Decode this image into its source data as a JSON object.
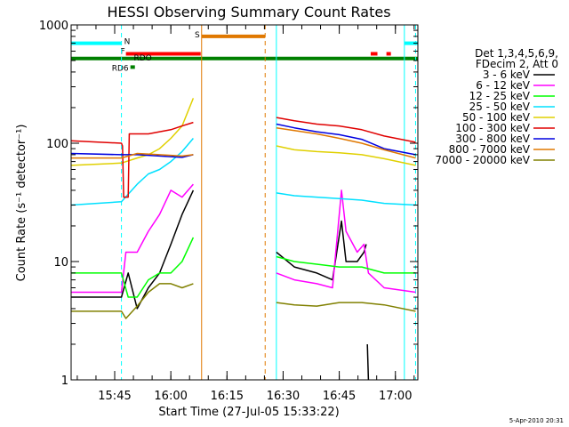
{
  "chart_data": {
    "type": "line",
    "title": "HESSI Observing Summary Count Rates",
    "xlabel": "Start Time (27-Jul-05 15:33:22)",
    "ylabel": "Count Rate (s⁻¹ detector⁻¹)",
    "yscale": "log",
    "ylim": [
      1,
      1000
    ],
    "xlim": [
      15.556,
      17.1
    ],
    "y_ticks": [
      {
        "value": 1,
        "label": "1"
      },
      {
        "value": 10,
        "label": "10"
      },
      {
        "value": 100,
        "label": "100"
      },
      {
        "value": 1000,
        "label": "1000"
      }
    ],
    "x_ticks": [
      {
        "value": 15.75,
        "label": "15:45"
      },
      {
        "value": 16.0,
        "label": "16:00"
      },
      {
        "value": 16.25,
        "label": "16:15"
      },
      {
        "value": 16.5,
        "label": "16:30"
      },
      {
        "value": 16.75,
        "label": "16:45"
      },
      {
        "value": 17.0,
        "label": "17:00"
      }
    ],
    "legend": {
      "position": "right",
      "header_lines": [
        "Det 1,3,4,5,6,9,",
        "FDecim 2, Att 0"
      ],
      "entries": [
        {
          "label": "3 - 6 keV",
          "color": "#000000"
        },
        {
          "label": "6 - 12 keV",
          "color": "#ff00ff"
        },
        {
          "label": "12 - 25 keV",
          "color": "#00ff00"
        },
        {
          "label": "25 - 50 keV",
          "color": "#00e0ff"
        },
        {
          "label": "50 - 100 keV",
          "color": "#e0d000"
        },
        {
          "label": "100 - 300 keV",
          "color": "#e00000"
        },
        {
          "label": "300 - 800 keV",
          "color": "#0000e0"
        },
        {
          "label": "800 - 7000 keV",
          "color": "#e07800"
        },
        {
          "label": "7000 - 20000 keV",
          "color": "#808000"
        }
      ]
    },
    "state_bars": [
      {
        "label": "N",
        "color": "#00ffff",
        "y": 700,
        "segments": [
          [
            15.556,
            15.78
          ],
          [
            17.04,
            17.1
          ]
        ]
      },
      {
        "label": "F",
        "color": "#ff0000",
        "y": 570,
        "segments": [
          [
            15.8,
            16.133
          ],
          [
            16.89,
            16.92
          ],
          [
            16.96,
            16.98
          ]
        ]
      },
      {
        "label": "S",
        "color": "#e07800",
        "y": 800,
        "segments": [
          [
            16.137,
            16.42
          ]
        ]
      },
      {
        "label": "RD6",
        "color": "#008000",
        "y": 440,
        "segments": [
          [
            15.82,
            15.84
          ]
        ]
      },
      {
        "label": "RDO",
        "color": "#008000",
        "y": 520,
        "segments": [
          [
            15.556,
            17.1
          ]
        ]
      }
    ],
    "boundaries": [
      {
        "x": 15.556,
        "color": "#00ffff",
        "style": "solid"
      },
      {
        "x": 15.78,
        "color": "#00ffff",
        "style": "dashed"
      },
      {
        "x": 16.137,
        "color": "#e07800",
        "style": "solid"
      },
      {
        "x": 16.42,
        "color": "#e07800",
        "style": "dashed"
      },
      {
        "x": 16.47,
        "color": "#00ffff",
        "style": "solid"
      },
      {
        "x": 17.04,
        "color": "#00ffff",
        "style": "solid"
      },
      {
        "x": 17.09,
        "color": "#00ffff",
        "style": "dashed"
      }
    ],
    "series": [
      {
        "name": "3 - 6 keV",
        "color": "#000000",
        "segments": [
          [
            [
              15.556,
              5
            ],
            [
              15.78,
              5
            ],
            [
              15.81,
              8
            ],
            [
              15.85,
              4
            ],
            [
              15.9,
              6
            ],
            [
              15.95,
              8
            ],
            [
              16.0,
              14
            ],
            [
              16.05,
              25
            ],
            [
              16.1,
              40
            ]
          ],
          [
            [
              16.47,
              12
            ],
            [
              16.55,
              9
            ],
            [
              16.65,
              8
            ],
            [
              16.72,
              7
            ],
            [
              16.76,
              22
            ],
            [
              16.78,
              10
            ],
            [
              16.83,
              10
            ],
            [
              16.86,
              12
            ],
            [
              16.87,
              14
            ]
          ],
          [
            [
              16.875,
              2
            ],
            [
              16.88,
              1
            ]
          ]
        ]
      },
      {
        "name": "6 - 12 keV",
        "color": "#ff00ff",
        "segments": [
          [
            [
              15.556,
              5.5
            ],
            [
              15.78,
              5.5
            ],
            [
              15.8,
              12
            ],
            [
              15.85,
              12
            ],
            [
              15.9,
              18
            ],
            [
              15.95,
              25
            ],
            [
              16.0,
              40
            ],
            [
              16.05,
              35
            ],
            [
              16.1,
              45
            ]
          ],
          [
            [
              16.47,
              8
            ],
            [
              16.55,
              7
            ],
            [
              16.65,
              6.5
            ],
            [
              16.72,
              6
            ],
            [
              16.76,
              40
            ],
            [
              16.78,
              18
            ],
            [
              16.83,
              12
            ],
            [
              16.86,
              14
            ],
            [
              16.88,
              8
            ],
            [
              16.95,
              6
            ],
            [
              17.09,
              5.5
            ]
          ]
        ]
      },
      {
        "name": "12 - 25 keV",
        "color": "#00ff00",
        "segments": [
          [
            [
              15.556,
              8
            ],
            [
              15.78,
              8
            ],
            [
              15.81,
              5
            ],
            [
              15.85,
              5
            ],
            [
              15.9,
              7
            ],
            [
              15.95,
              8
            ],
            [
              16.0,
              8
            ],
            [
              16.05,
              10
            ],
            [
              16.1,
              16
            ]
          ],
          [
            [
              16.47,
              11
            ],
            [
              16.55,
              10
            ],
            [
              16.65,
              9.5
            ],
            [
              16.75,
              9
            ],
            [
              16.85,
              9
            ],
            [
              16.95,
              8
            ],
            [
              17.09,
              8
            ]
          ]
        ]
      },
      {
        "name": "25 - 50 keV",
        "color": "#00e0ff",
        "segments": [
          [
            [
              15.556,
              30
            ],
            [
              15.78,
              32
            ],
            [
              15.85,
              45
            ],
            [
              15.9,
              55
            ],
            [
              15.95,
              60
            ],
            [
              16.0,
              70
            ],
            [
              16.05,
              85
            ],
            [
              16.1,
              110
            ]
          ],
          [
            [
              16.47,
              38
            ],
            [
              16.55,
              36
            ],
            [
              16.65,
              35
            ],
            [
              16.75,
              34
            ],
            [
              16.85,
              33
            ],
            [
              16.95,
              31
            ],
            [
              17.09,
              30
            ]
          ]
        ]
      },
      {
        "name": "50 - 100 keV",
        "color": "#e0d000",
        "segments": [
          [
            [
              15.556,
              65
            ],
            [
              15.78,
              68
            ],
            [
              15.85,
              75
            ],
            [
              15.9,
              80
            ],
            [
              15.95,
              90
            ],
            [
              16.0,
              110
            ],
            [
              16.05,
              140
            ],
            [
              16.1,
              240
            ]
          ],
          [
            [
              16.47,
              95
            ],
            [
              16.55,
              88
            ],
            [
              16.65,
              85
            ],
            [
              16.75,
              83
            ],
            [
              16.85,
              80
            ],
            [
              16.95,
              74
            ],
            [
              17.09,
              65
            ]
          ]
        ]
      },
      {
        "name": "100 - 300 keV",
        "color": "#e00000",
        "segments": [
          [
            [
              15.556,
              105
            ],
            [
              15.78,
              100
            ],
            [
              15.785,
              95
            ],
            [
              15.79,
              35
            ],
            [
              15.81,
              35
            ],
            [
              15.815,
              120
            ],
            [
              15.9,
              120
            ],
            [
              15.95,
              125
            ],
            [
              16.0,
              130
            ],
            [
              16.05,
              140
            ],
            [
              16.1,
              150
            ]
          ],
          [
            [
              16.47,
              165
            ],
            [
              16.55,
              155
            ],
            [
              16.65,
              145
            ],
            [
              16.75,
              140
            ],
            [
              16.85,
              130
            ],
            [
              16.95,
              115
            ],
            [
              17.09,
              102
            ]
          ]
        ]
      },
      {
        "name": "300 - 800 keV",
        "color": "#0000e0",
        "segments": [
          [
            [
              15.556,
              82
            ],
            [
              15.78,
              80
            ],
            [
              15.85,
              80
            ],
            [
              15.95,
              78
            ],
            [
              16.05,
              76
            ],
            [
              16.1,
              80
            ]
          ],
          [
            [
              16.47,
              145
            ],
            [
              16.55,
              135
            ],
            [
              16.65,
              125
            ],
            [
              16.75,
              118
            ],
            [
              16.85,
              108
            ],
            [
              16.95,
              90
            ],
            [
              17.09,
              80
            ]
          ]
        ]
      },
      {
        "name": "800 - 7000 keV",
        "color": "#e07800",
        "segments": [
          [
            [
              15.556,
              75
            ],
            [
              15.78,
              75
            ],
            [
              15.85,
              82
            ],
            [
              15.95,
              80
            ],
            [
              16.05,
              78
            ],
            [
              16.1,
              80
            ]
          ],
          [
            [
              16.47,
              135
            ],
            [
              16.55,
              128
            ],
            [
              16.65,
              120
            ],
            [
              16.75,
              110
            ],
            [
              16.85,
              100
            ],
            [
              16.95,
              88
            ],
            [
              17.09,
              75
            ]
          ]
        ]
      },
      {
        "name": "7000 - 20000 keV",
        "color": "#808000",
        "segments": [
          [
            [
              15.556,
              3.8
            ],
            [
              15.78,
              3.8
            ],
            [
              15.8,
              3.3
            ],
            [
              15.85,
              4.2
            ],
            [
              15.9,
              5.5
            ],
            [
              15.95,
              6.5
            ],
            [
              16.0,
              6.5
            ],
            [
              16.05,
              6
            ],
            [
              16.1,
              6.5
            ]
          ],
          [
            [
              16.47,
              4.5
            ],
            [
              16.55,
              4.3
            ],
            [
              16.65,
              4.2
            ],
            [
              16.75,
              4.5
            ],
            [
              16.85,
              4.5
            ],
            [
              16.95,
              4.3
            ],
            [
              17.09,
              3.8
            ]
          ]
        ]
      }
    ]
  },
  "footer": {
    "date_stamp": "5-Apr-2010 20:31"
  }
}
